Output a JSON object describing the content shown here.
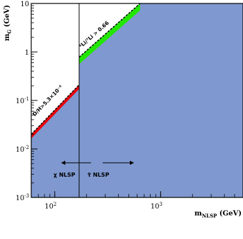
{
  "chart_data": {
    "type": "area",
    "x_scale": "log",
    "y_scale": "log",
    "xlim": [
      60,
      6000
    ],
    "ylim": [
      0.001,
      10
    ],
    "xlabel": {
      "main": "m",
      "sub": "NLSP",
      "unit": " (GeV)"
    },
    "ylabel": {
      "main": "m",
      "sub": "G",
      "unit": " (GeV)"
    },
    "x_ticks": [
      {
        "value": 100,
        "base": "10",
        "exp": "2"
      },
      {
        "value": 1000,
        "base": "10",
        "exp": "3"
      }
    ],
    "y_ticks": [
      {
        "value": 0.001,
        "base": "10",
        "exp": "-3"
      },
      {
        "value": 0.01,
        "base": "10",
        "exp": "-2"
      },
      {
        "value": 0.1,
        "base": "10",
        "exp": "-1"
      },
      {
        "value": 1,
        "base": "1",
        "exp": ""
      },
      {
        "value": 10,
        "base": "10",
        "exp": ""
      }
    ],
    "divider_x": 170,
    "excluded_region_color": "#7f98cf",
    "constraints": [
      {
        "name": "D/H",
        "label": "D/H>5.3×10⁻⁵",
        "color": "#e8000b",
        "points": [
          [
            60,
            0.02
          ],
          [
            170,
            0.21
          ]
        ]
      },
      {
        "name": "6Li/7Li",
        "label": "⁶Li/⁷Li > 0.66",
        "color": "#22e600",
        "points": [
          [
            170,
            0.78
          ],
          [
            640,
            10
          ]
        ]
      }
    ],
    "region_labels": [
      {
        "text": "χ NLSP",
        "arrow": "left"
      },
      {
        "text": "τ̃ NLSP",
        "arrow": "right"
      }
    ]
  }
}
